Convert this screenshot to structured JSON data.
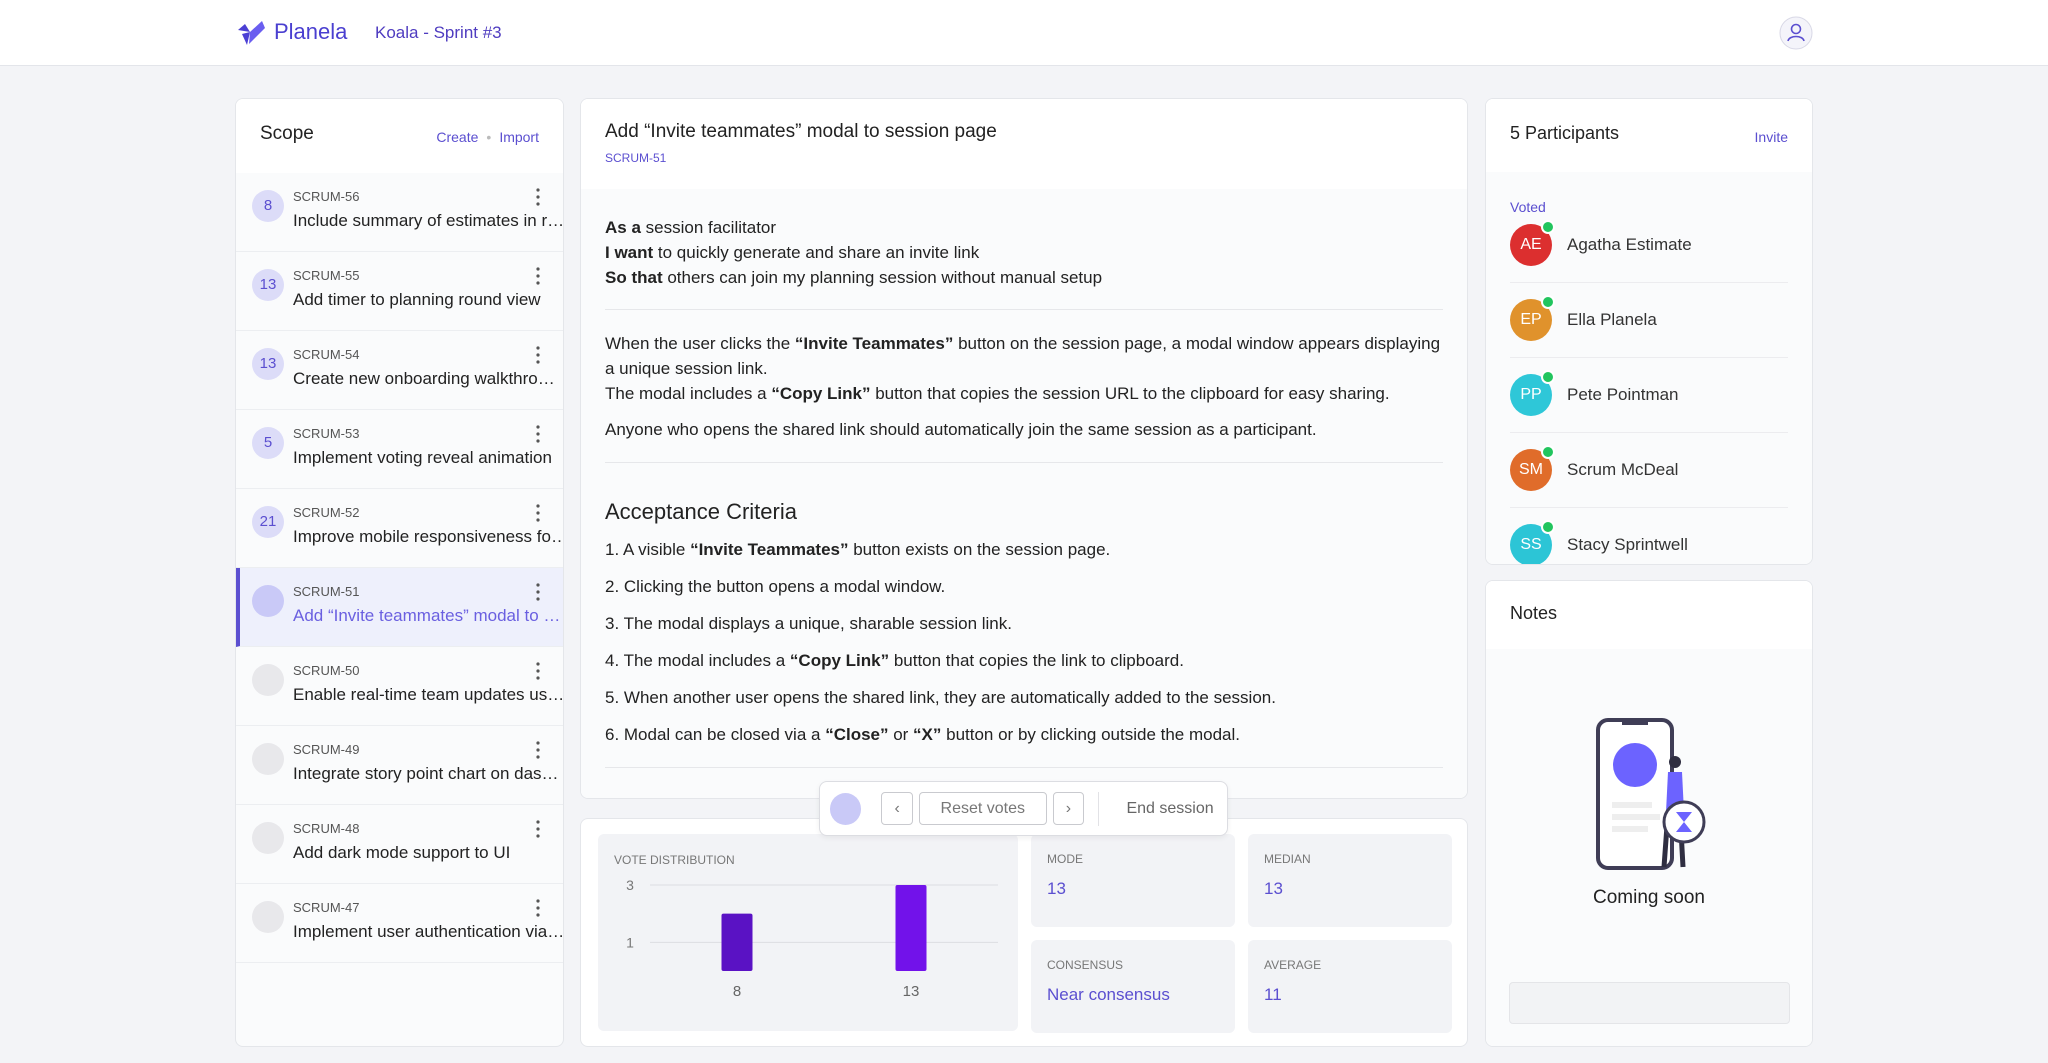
{
  "header": {
    "brand": "Planela",
    "session": "Koala - Sprint #3"
  },
  "scope": {
    "title": "Scope",
    "actions": [
      "Create",
      "Import"
    ],
    "selected": 5,
    "items": [
      {
        "points": 8,
        "key": "SCRUM-56",
        "title": "Include summary of estimates in r…"
      },
      {
        "points": 13,
        "key": "SCRUM-55",
        "title": "Add timer to planning round view"
      },
      {
        "points": 13,
        "key": "SCRUM-54",
        "title": "Create new onboarding walkthro…"
      },
      {
        "points": 5,
        "key": "SCRUM-53",
        "title": "Implement voting reveal animation"
      },
      {
        "points": 21,
        "key": "SCRUM-52",
        "title": "Improve mobile responsiveness fo…"
      },
      {
        "points": null,
        "key": "SCRUM-51",
        "title": "Add “Invite teammates” modal to …"
      },
      {
        "points": null,
        "key": "SCRUM-50",
        "title": "Enable real-time team updates us…"
      },
      {
        "points": null,
        "key": "SCRUM-49",
        "title": "Integrate story point chart on das…"
      },
      {
        "points": null,
        "key": "SCRUM-48",
        "title": "Add dark mode support to UI"
      },
      {
        "points": null,
        "key": "SCRUM-47",
        "title": "Implement user authentication via…"
      }
    ]
  },
  "story": {
    "title": "Add “Invite teammates” modal to session page",
    "key": "SCRUM-51",
    "user_story": [
      [
        {
          "text": "As a",
          "bold": true
        },
        {
          "text": " session facilitator"
        }
      ],
      [
        {
          "text": "I want",
          "bold": true
        },
        {
          "text": " to quickly generate and share an invite link"
        }
      ],
      [
        {
          "text": "So that",
          "bold": true
        },
        {
          "text": " others can join my planning session without manual setup"
        }
      ]
    ],
    "description": [
      [
        {
          "text": "When the user clicks the "
        },
        {
          "text": "“Invite Teammates”",
          "bold": true
        },
        {
          "text": " button on the session page, a modal window appears displaying a unique session link."
        }
      ],
      [
        {
          "text": "The modal includes a "
        },
        {
          "text": "“Copy Link”",
          "bold": true
        },
        {
          "text": " button that copies the session URL to the clipboard for easy sharing."
        }
      ],
      [
        {
          "text": "Anyone who opens the shared link should automatically join the same session as a participant."
        }
      ]
    ],
    "criteria_title": "Acceptance Criteria",
    "criteria": [
      [
        {
          "text": "1. A visible "
        },
        {
          "text": "“Invite Teammates”",
          "bold": true
        },
        {
          "text": " button exists on the session page."
        }
      ],
      [
        {
          "text": "2. Clicking the button opens a modal window."
        }
      ],
      [
        {
          "text": "3. The modal displays a unique, sharable session link."
        }
      ],
      [
        {
          "text": "4. The modal includes a "
        },
        {
          "text": "“Copy Link”",
          "bold": true
        },
        {
          "text": " button that copies the link to clipboard."
        }
      ],
      [
        {
          "text": "5. When another user opens the shared link, they are automatically added to the session."
        }
      ],
      [
        {
          "text": "6. Modal can be closed via a "
        },
        {
          "text": "“Close”",
          "bold": true
        },
        {
          "text": " or "
        },
        {
          "text": "“X”",
          "bold": true
        },
        {
          "text": " button or by clicking outside the modal."
        }
      ]
    ]
  },
  "controls": {
    "reset": "Reset votes",
    "end": "End session"
  },
  "results": {
    "chart": {
      "type": "bar",
      "title": "VOTE DISTRIBUTION",
      "categories": [
        "8",
        "13"
      ],
      "values": [
        2,
        3
      ],
      "colors": [
        "#5a12c4",
        "#7212ea"
      ],
      "ylim": [
        0,
        3
      ],
      "yticks": [
        1,
        3
      ],
      "grid": true
    },
    "stats": [
      {
        "label": "MODE",
        "value": 13
      },
      {
        "label": "MEDIAN",
        "value": 13
      },
      {
        "label": "CONSENSUS",
        "value": "Near consensus"
      },
      {
        "label": "AVERAGE",
        "value": 11
      }
    ]
  },
  "participants": {
    "title": "5 Participants",
    "action": "Invite",
    "group": "Voted",
    "people": [
      {
        "initials": "AE",
        "name": "Agatha Estimate",
        "color": "#dc2f2f"
      },
      {
        "initials": "EP",
        "name": "Ella Planela",
        "color": "#e0922c"
      },
      {
        "initials": "PP",
        "name": "Pete Pointman",
        "color": "#2ec7d8"
      },
      {
        "initials": "SM",
        "name": "Scrum McDeal",
        "color": "#e06c2a"
      },
      {
        "initials": "SS",
        "name": "Stacy Sprintwell",
        "color": "#2cc5d6"
      }
    ]
  },
  "notes": {
    "title": "Notes",
    "status": "Coming soon"
  }
}
